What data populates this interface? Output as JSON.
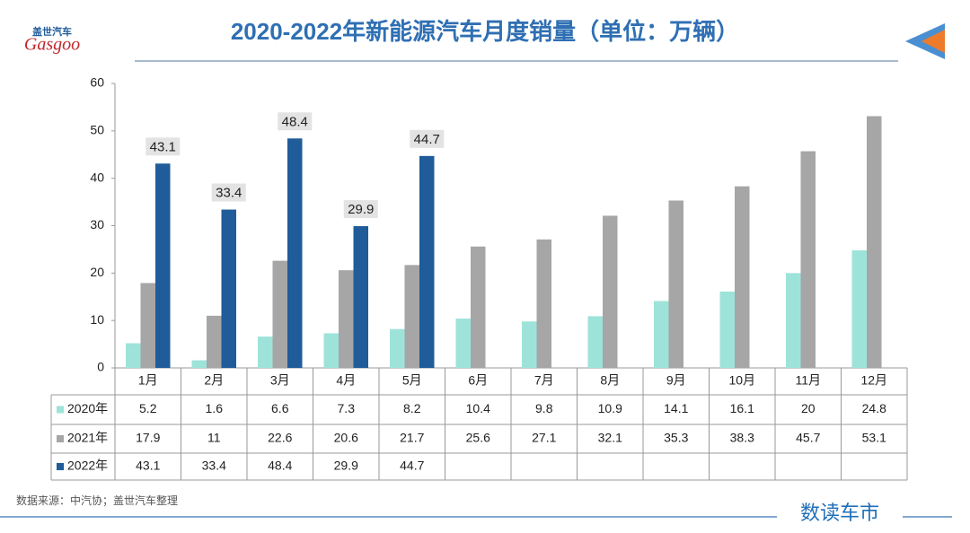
{
  "logo": {
    "name": "盖世汽车",
    "brand": "Gasgoo"
  },
  "source": "数据来源：中汽协；盖世汽车整理",
  "footer_brand": "数读车市",
  "chart_data": {
    "type": "bar",
    "title": "2020-2022年新能源汽车月度销量（单位：万辆）",
    "categories": [
      "1月",
      "2月",
      "3月",
      "4月",
      "5月",
      "6月",
      "7月",
      "8月",
      "9月",
      "10月",
      "11月",
      "12月"
    ],
    "series": [
      {
        "name": "2020年",
        "color": "#9ee3da",
        "values": [
          5.2,
          1.6,
          6.6,
          7.3,
          8.2,
          10.4,
          9.8,
          10.9,
          14.1,
          16.1,
          20,
          24.8
        ]
      },
      {
        "name": "2021年",
        "color": "#a6a6a6",
        "values": [
          17.9,
          11,
          22.6,
          20.6,
          21.7,
          25.6,
          27.1,
          32.1,
          35.3,
          38.3,
          45.7,
          53.1
        ]
      },
      {
        "name": "2022年",
        "color": "#1f5c99",
        "values": [
          43.1,
          33.4,
          48.4,
          29.9,
          44.7,
          null,
          null,
          null,
          null,
          null,
          null,
          null
        ]
      }
    ],
    "data_labels": "2022年",
    "ylim": [
      0,
      60
    ],
    "yticks": [
      0,
      10,
      20,
      30,
      40,
      50,
      60
    ],
    "grid": false
  }
}
